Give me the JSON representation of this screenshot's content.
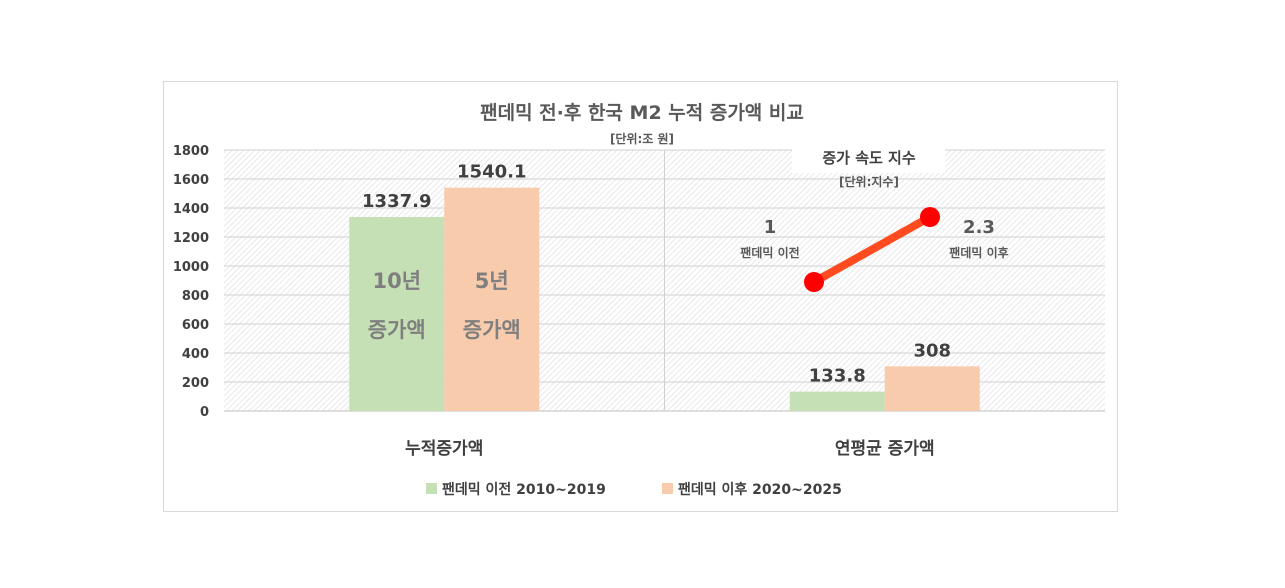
{
  "chart_data": {
    "type": "bar",
    "title": "팬데믹 전·후 한국 M2 누적 증가액 비교",
    "unit": "[단위:조 원]",
    "categories": [
      "누적증가액",
      "연평균 증가액"
    ],
    "ylim": [
      0,
      1800
    ],
    "yticks": [
      0,
      200,
      400,
      600,
      800,
      1000,
      1200,
      1400,
      1600,
      1800
    ],
    "grid": true,
    "legend_position": "bottom",
    "series": [
      {
        "name": "팬데믹 이전 2010~2019",
        "color": "#c5e0b4",
        "values": [
          1337.9,
          133.8
        ],
        "labels": [
          "1337.9",
          "133.8"
        ]
      },
      {
        "name": "팬데믹 이후 2020~2025",
        "color": "#f8cbad",
        "values": [
          1540.1,
          308
        ],
        "labels": [
          "1540.1",
          "308"
        ]
      }
    ],
    "bar_annotations": [
      {
        "lines": [
          "10년",
          "증가액"
        ],
        "color": "#7f7f7f"
      },
      {
        "lines": [
          "5년",
          "증가액"
        ],
        "color": "#7f7f7f"
      }
    ],
    "inset": {
      "type": "line",
      "title": "증가 속도 지수",
      "unit": "[단위:지수]",
      "color": "#ff0000",
      "line_color": "#ff4b1f",
      "points": [
        {
          "label": "팬데믹 이전",
          "value": 1,
          "value_label": "1"
        },
        {
          "label": "팬데믹 이후",
          "value": 2.3,
          "value_label": "2.3"
        }
      ]
    }
  }
}
